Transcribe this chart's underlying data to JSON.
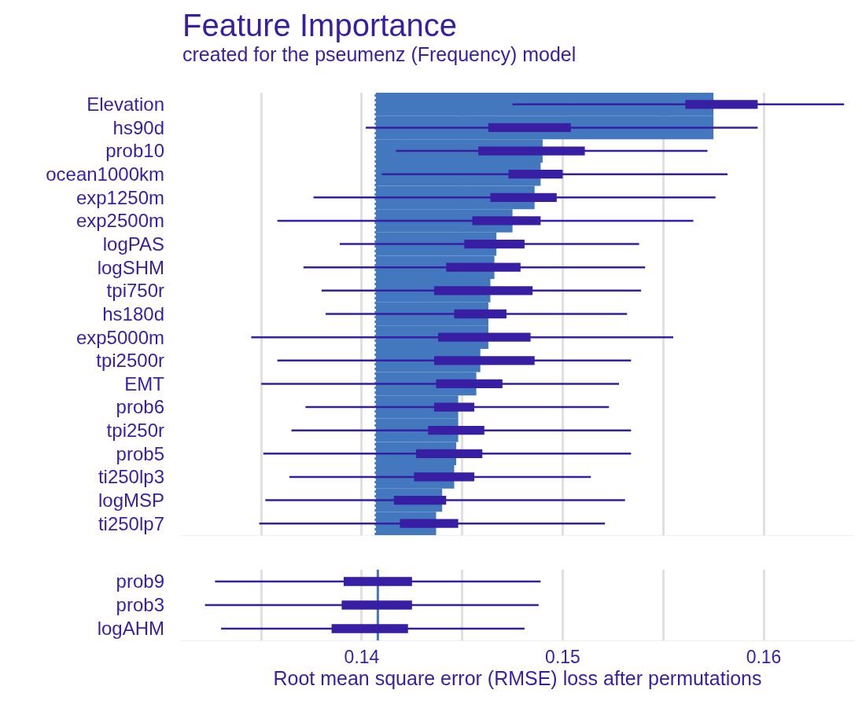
{
  "chart_data": [
    {
      "type": "bar",
      "title": "Feature Importance",
      "subtitle": "created for the pseumenz (Frequency) model",
      "orientation": "horizontal",
      "grid": "x",
      "tick_labels": "y",
      "categories": [
        "Elevation",
        "hs90d",
        "prob10",
        "ocean1000km",
        "exp1250m",
        "exp2500m",
        "logPAS",
        "logSHM",
        "tpi750r",
        "hs180d",
        "exp5000m",
        "tpi2500r",
        "EMT",
        "prob6",
        "tpi250r",
        "prob5",
        "ti250lp3",
        "logMSP",
        "ti250lp7"
      ],
      "series": [
        {
          "color": "#4378bf",
          "base": [
            0.1407,
            0.1407,
            0.1407,
            0.1407,
            0.1407,
            0.1407,
            0.1407,
            0.1407,
            0.1407,
            0.1407,
            0.1407,
            0.1407,
            0.1407,
            0.1407,
            0.1407,
            0.1407,
            0.1407,
            0.1407,
            0.1407
          ],
          "values": [
            0.0168,
            0.0168,
            0.0083,
            0.0082,
            0.0079,
            0.0068,
            0.006,
            0.0059,
            0.0057,
            0.0056,
            0.0056,
            0.0052,
            0.005,
            0.0041,
            0.0041,
            0.004,
            0.0039,
            0.0033,
            0.003
          ]
        },
        {
          "type": "box",
          "color": "#371ea3",
          "boxes": [
            {
              "low": 0.1475,
              "q1": 0.1561,
              "q3": 0.1597,
              "high": 0.164
            },
            {
              "low": 0.1402,
              "q1": 0.1463,
              "q3": 0.1504,
              "high": 0.1597
            },
            {
              "low": 0.1417,
              "q1": 0.1458,
              "q3": 0.1511,
              "high": 0.1572
            },
            {
              "low": 0.141,
              "q1": 0.1473,
              "q3": 0.15,
              "high": 0.1582
            },
            {
              "low": 0.1376,
              "q1": 0.1464,
              "q3": 0.1497,
              "high": 0.1576
            },
            {
              "low": 0.1358,
              "q1": 0.1455,
              "q3": 0.1489,
              "high": 0.1565
            },
            {
              "low": 0.1389,
              "q1": 0.1451,
              "q3": 0.1481,
              "high": 0.1538
            },
            {
              "low": 0.1371,
              "q1": 0.1442,
              "q3": 0.1479,
              "high": 0.1541
            },
            {
              "low": 0.138,
              "q1": 0.1436,
              "q3": 0.1485,
              "high": 0.1539
            },
            {
              "low": 0.1382,
              "q1": 0.1446,
              "q3": 0.1472,
              "high": 0.1532
            },
            {
              "low": 0.1345,
              "q1": 0.1438,
              "q3": 0.1484,
              "high": 0.1555
            },
            {
              "low": 0.1358,
              "q1": 0.1436,
              "q3": 0.1486,
              "high": 0.1534
            },
            {
              "low": 0.135,
              "q1": 0.1437,
              "q3": 0.147,
              "high": 0.1528
            },
            {
              "low": 0.1372,
              "q1": 0.1436,
              "q3": 0.1456,
              "high": 0.1523
            },
            {
              "low": 0.1365,
              "q1": 0.1433,
              "q3": 0.1461,
              "high": 0.1534
            },
            {
              "low": 0.1351,
              "q1": 0.1427,
              "q3": 0.146,
              "high": 0.1534
            },
            {
              "low": 0.1364,
              "q1": 0.1426,
              "q3": 0.1456,
              "high": 0.1514
            },
            {
              "low": 0.1352,
              "q1": 0.1416,
              "q3": 0.1442,
              "high": 0.1531
            },
            {
              "low": 0.1349,
              "q1": 0.1419,
              "q3": 0.1448,
              "high": 0.1521
            }
          ]
        }
      ],
      "ref_lines": [
        {
          "axis": "x",
          "value": 0.1407,
          "color": "#4378bf",
          "line_style": "dotted"
        }
      ],
      "xlim": [
        0.131,
        0.1645
      ],
      "xticks": [
        {
          "value": 0.135,
          "label": null
        },
        0.14,
        {
          "value": 0.145,
          "label": null
        },
        0.15,
        {
          "value": 0.155,
          "label": null
        },
        0.16
      ]
    },
    {
      "type": "box",
      "xlabel": "Root mean square error (RMSE) loss after permutations",
      "orientation": "horizontal",
      "grid": "x",
      "categories": [
        "prob9",
        "prob3",
        "logAHM"
      ],
      "series": [
        {
          "color": "#371ea3",
          "boxes": [
            {
              "low": 0.1327,
              "q1": 0.1391,
              "q3": 0.1425,
              "high": 0.1489
            },
            {
              "low": 0.1322,
              "q1": 0.139,
              "q3": 0.1425,
              "high": 0.1488
            },
            {
              "low": 0.133,
              "q1": 0.1385,
              "q3": 0.1423,
              "high": 0.1481
            }
          ]
        }
      ],
      "ref_lines": [
        {
          "axis": "x",
          "value": 0.1408,
          "color": "#4378bf",
          "line_style": "solid"
        }
      ],
      "xlim": [
        0.131,
        0.1645
      ],
      "xticks": [
        {
          "value": 0.135,
          "label": null
        },
        0.14,
        {
          "value": 0.145,
          "label": null
        },
        0.15,
        {
          "value": 0.155,
          "label": null
        },
        0.16
      ]
    }
  ]
}
